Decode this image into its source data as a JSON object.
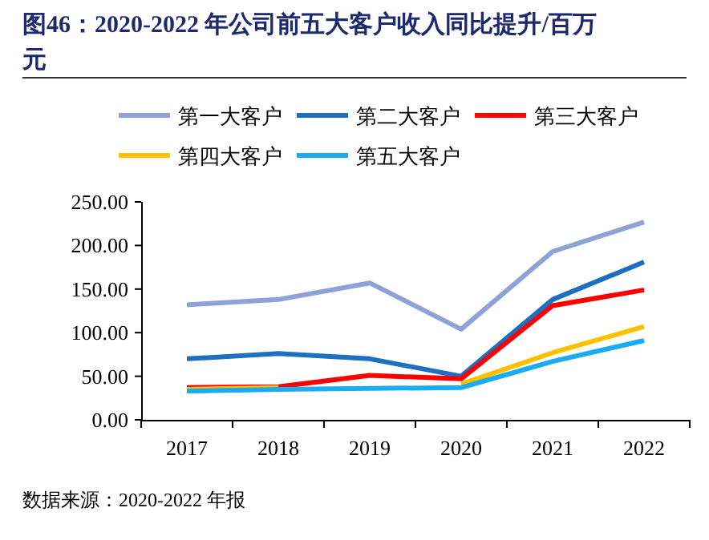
{
  "chart_data": {
    "type": "line",
    "title": "图46：2020-2022 年公司前五大客户收入同比提升/百万元",
    "categories": [
      "2017",
      "2018",
      "2019",
      "2020",
      "2021",
      "2022"
    ],
    "series": [
      {
        "name": "第一大客户",
        "color": "#8fa1d6",
        "values": [
          132,
          138,
          157,
          104,
          193,
          227
        ]
      },
      {
        "name": "第二大客户",
        "color": "#1f6fc0",
        "values": [
          70,
          76,
          70,
          50,
          138,
          181
        ]
      },
      {
        "name": "第三大客户",
        "color": "#ff0000",
        "values": [
          37,
          38,
          51,
          47,
          131,
          149
        ]
      },
      {
        "name": "第四大客户",
        "color": "#ffc000",
        "values": [
          35,
          37,
          null,
          41,
          77,
          107
        ]
      },
      {
        "name": "第五大客户",
        "color": "#1aacf0",
        "values": [
          33,
          35,
          36,
          37,
          67,
          91
        ]
      }
    ],
    "ylim": [
      0,
      250
    ],
    "yticks": [
      {
        "value": 0,
        "label": "0.00"
      },
      {
        "value": 50,
        "label": "50.00"
      },
      {
        "value": 100,
        "label": "100.00"
      },
      {
        "value": 150,
        "label": "150.00"
      },
      {
        "value": 200,
        "label": "200.00"
      },
      {
        "value": 250,
        "label": "250.00"
      }
    ],
    "legend": "top",
    "grid": false,
    "marker": "none",
    "line_style": "solid",
    "annotations": [
      "数据来源：2020-2022 年报"
    ]
  }
}
